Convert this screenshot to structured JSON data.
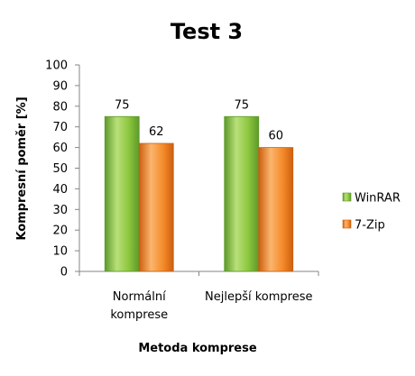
{
  "chart_data": {
    "type": "bar",
    "title": "Test 3",
    "xlabel": "Metoda komprese",
    "ylabel": "Kompresní poměr [%]",
    "ylim": [
      0,
      100
    ],
    "ytick_step": 10,
    "grid": false,
    "legend_position": "right",
    "categories": [
      [
        "Normální",
        "komprese"
      ],
      [
        "Nejlepší komprese"
      ]
    ],
    "series": [
      {
        "name": "WinRAR",
        "values": [
          75,
          75
        ],
        "color": "#8cc63e",
        "color_dark": "#5d9a2a",
        "color_light": "#b9e07a"
      },
      {
        "name": "7-Zip",
        "values": [
          62,
          60
        ],
        "color": "#f58a2a",
        "color_dark": "#cc5f10",
        "color_light": "#fbb56e"
      }
    ]
  }
}
